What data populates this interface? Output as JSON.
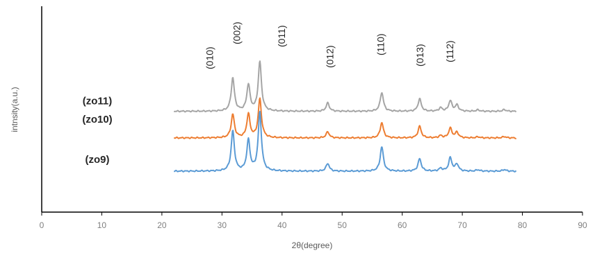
{
  "chart_data": {
    "type": "line",
    "xlabel": "2θ(degree)",
    "ylabel": "intnsity(a.u.)",
    "xlim": [
      0,
      90
    ],
    "xticks": [
      0,
      10,
      20,
      30,
      40,
      50,
      60,
      70,
      80,
      90
    ],
    "y_ticks_shown": false,
    "grid": false,
    "x_range_data": [
      22,
      79
    ],
    "series": [
      {
        "name": "(zo11)",
        "color": "#a5a5a5",
        "baseline": 0.96,
        "peaks": [
          {
            "x": 31.8,
            "h": 1.2
          },
          {
            "x": 34.4,
            "h": 0.95
          },
          {
            "x": 36.3,
            "h": 1.78
          },
          {
            "x": 47.6,
            "h": 0.3
          },
          {
            "x": 56.6,
            "h": 0.68
          },
          {
            "x": 62.9,
            "h": 0.45
          },
          {
            "x": 66.4,
            "h": 0.12
          },
          {
            "x": 68.0,
            "h": 0.38
          },
          {
            "x": 69.1,
            "h": 0.22
          },
          {
            "x": 72.6,
            "h": 0.05
          },
          {
            "x": 77.0,
            "h": 0.06
          }
        ]
      },
      {
        "name": "(zo10)",
        "color": "#ed7d31",
        "baseline": 0.0,
        "peaks": [
          {
            "x": 31.8,
            "h": 0.85
          },
          {
            "x": 34.4,
            "h": 0.85
          },
          {
            "x": 36.3,
            "h": 1.4
          },
          {
            "x": 47.6,
            "h": 0.22
          },
          {
            "x": 56.6,
            "h": 0.55
          },
          {
            "x": 62.9,
            "h": 0.42
          },
          {
            "x": 66.4,
            "h": 0.08
          },
          {
            "x": 68.0,
            "h": 0.35
          },
          {
            "x": 69.1,
            "h": 0.2
          },
          {
            "x": 72.6,
            "h": 0.04
          },
          {
            "x": 77.0,
            "h": 0.05
          }
        ]
      },
      {
        "name": "(zo9)",
        "color": "#5b9bd5",
        "baseline": -1.2,
        "peaks": [
          {
            "x": 31.8,
            "h": 1.45
          },
          {
            "x": 34.4,
            "h": 1.1
          },
          {
            "x": 36.3,
            "h": 2.12
          },
          {
            "x": 47.6,
            "h": 0.28
          },
          {
            "x": 56.6,
            "h": 0.88
          },
          {
            "x": 62.9,
            "h": 0.45
          },
          {
            "x": 66.4,
            "h": 0.1
          },
          {
            "x": 68.0,
            "h": 0.48
          },
          {
            "x": 69.1,
            "h": 0.25
          },
          {
            "x": 72.6,
            "h": 0.05
          },
          {
            "x": 77.0,
            "h": 0.06
          }
        ]
      }
    ],
    "annotations": [
      {
        "text": "(010)",
        "x": 28.5
      },
      {
        "text": "(002)",
        "x": 33.0
      },
      {
        "text": "(011)",
        "x": 40.5
      },
      {
        "text": "(012)",
        "x": 48.5
      },
      {
        "text": "(110)",
        "x": 57.0
      },
      {
        "text": "(013)",
        "x": 63.5
      },
      {
        "text": "(112)",
        "x": 68.5
      }
    ]
  }
}
